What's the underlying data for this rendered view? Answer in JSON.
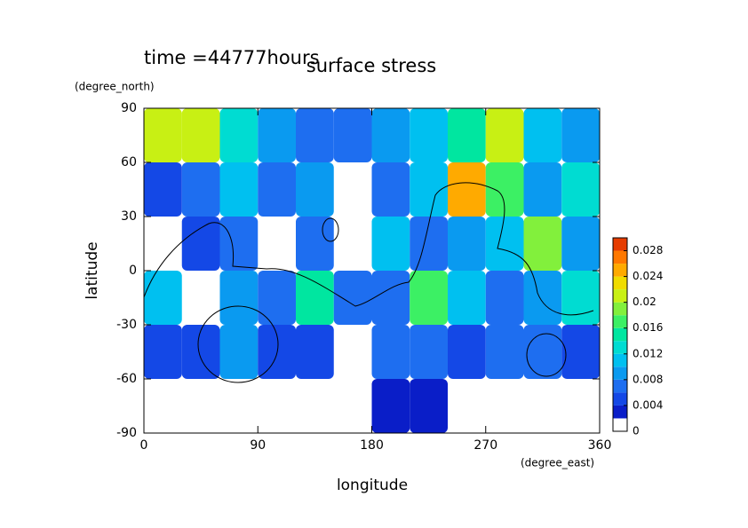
{
  "chart_data": {
    "type": "contour",
    "title": "surface stress",
    "subtitle": "time =44777hours",
    "xlabel": "longitude",
    "xunit": "(degree_east)",
    "ylabel": "latitude",
    "yunit": "(degree_north)",
    "xlim": [
      0,
      360
    ],
    "xticks": [
      0,
      90,
      180,
      270,
      360
    ],
    "ylim": [
      -90,
      90
    ],
    "yticks": [
      -90,
      -60,
      -30,
      0,
      30,
      60,
      90
    ],
    "x": [
      15,
      45,
      75,
      105,
      135,
      165,
      195,
      225,
      255,
      285,
      315,
      345
    ],
    "y": [
      75,
      45,
      15,
      -15,
      -45,
      -75
    ],
    "z": [
      [
        0.02,
        0.02,
        0.012,
        0.008,
        0.006,
        0.006,
        0.008,
        0.01,
        0.014,
        0.02,
        0.01,
        0.008
      ],
      [
        0.004,
        0.006,
        0.01,
        0.006,
        0.008,
        null,
        0.006,
        0.01,
        0.024,
        0.016,
        0.008,
        0.012
      ],
      [
        null,
        0.004,
        0.006,
        null,
        0.006,
        null,
        0.01,
        0.006,
        0.008,
        0.01,
        0.018,
        0.008
      ],
      [
        0.01,
        null,
        0.008,
        0.006,
        0.014,
        0.006,
        0.006,
        0.016,
        0.01,
        0.006,
        0.008,
        0.012
      ],
      [
        0.004,
        0.004,
        0.008,
        0.004,
        0.004,
        null,
        0.006,
        0.006,
        0.004,
        0.006,
        0.006,
        0.004
      ],
      [
        null,
        null,
        null,
        null,
        null,
        null,
        0.003,
        0.003,
        null,
        null,
        null,
        null
      ]
    ],
    "colorbar": {
      "levels": [
        0,
        0.002,
        0.004,
        0.006,
        0.008,
        0.01,
        0.012,
        0.014,
        0.016,
        0.018,
        0.02,
        0.022,
        0.024,
        0.026,
        0.028,
        0.03
      ],
      "colors": [
        "#ffffff",
        "#0a1ec8",
        "#1448e6",
        "#1e6ef0",
        "#0a9af0",
        "#00c0f0",
        "#00dcd2",
        "#00e6a0",
        "#3cf064",
        "#82f03c",
        "#c8f014",
        "#f0dc00",
        "#ffaa00",
        "#ff7800",
        "#e63c00"
      ],
      "ticks": [
        0,
        0.004,
        0.008,
        0.012,
        0.016,
        0.02,
        0.024,
        0.028
      ]
    }
  }
}
